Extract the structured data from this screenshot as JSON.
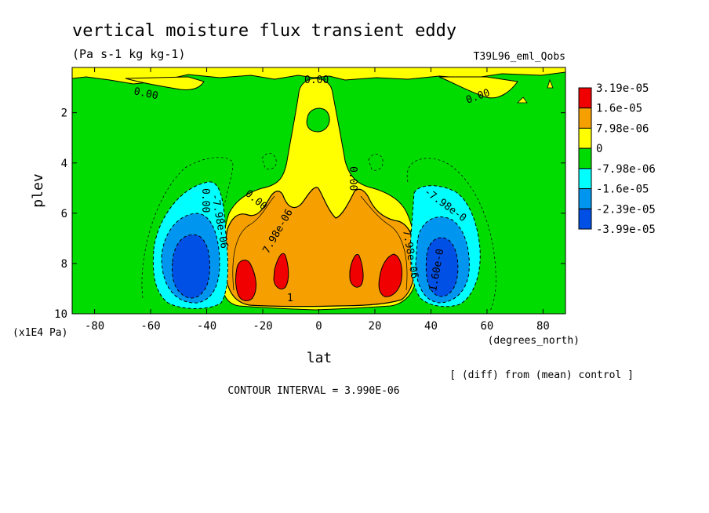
{
  "chart_data": {
    "type": "heatmap",
    "title": "vertical moisture flux transient eddy",
    "units_label": "(Pa s-1 kg kg-1)",
    "run_label": "T39L96_eml_Qobs",
    "xlabel": "lat",
    "x_units_label": "(degrees_north)",
    "ylabel": "plev",
    "y_units_label": "(x1E4 Pa)",
    "xlim": [
      -88,
      88
    ],
    "ylim": [
      0.2,
      10
    ],
    "y_inverted": true,
    "x_ticks": [
      -80,
      -60,
      -40,
      -20,
      0,
      20,
      40,
      60,
      80
    ],
    "x_tick_labels": [
      "-80",
      "-60",
      "-40",
      "-20",
      "0",
      "20",
      "40",
      "60",
      "80"
    ],
    "y_ticks": [
      2,
      4,
      6,
      8,
      10
    ],
    "y_tick_labels": [
      "2",
      "4",
      "6",
      "8",
      "10"
    ],
    "colorbar": {
      "levels": [
        "3.19e-05",
        "1.6e-05",
        "7.98e-06",
        "0",
        "-7.98e-06",
        "-1.6e-05",
        "-2.39e-05",
        "-3.99e-05"
      ],
      "colors": [
        "#f00000",
        "#f5a000",
        "#ffff00",
        "#00dc00",
        "#00ffff",
        "#0096f0",
        "#0050e6"
      ]
    },
    "contour_labels": [
      "0.00",
      "0.00",
      "0.00",
      "0.00",
      "0.00",
      "0.00",
      "7.98e-06",
      "7.98e-06",
      "-7.98e-0",
      "-7.98e-06",
      "1",
      "1.60e-0"
    ],
    "footer_interval": "CONTOUR INTERVAL = 3.990E-06",
    "footer_note": "[ (diff) from (mean) control ]"
  }
}
